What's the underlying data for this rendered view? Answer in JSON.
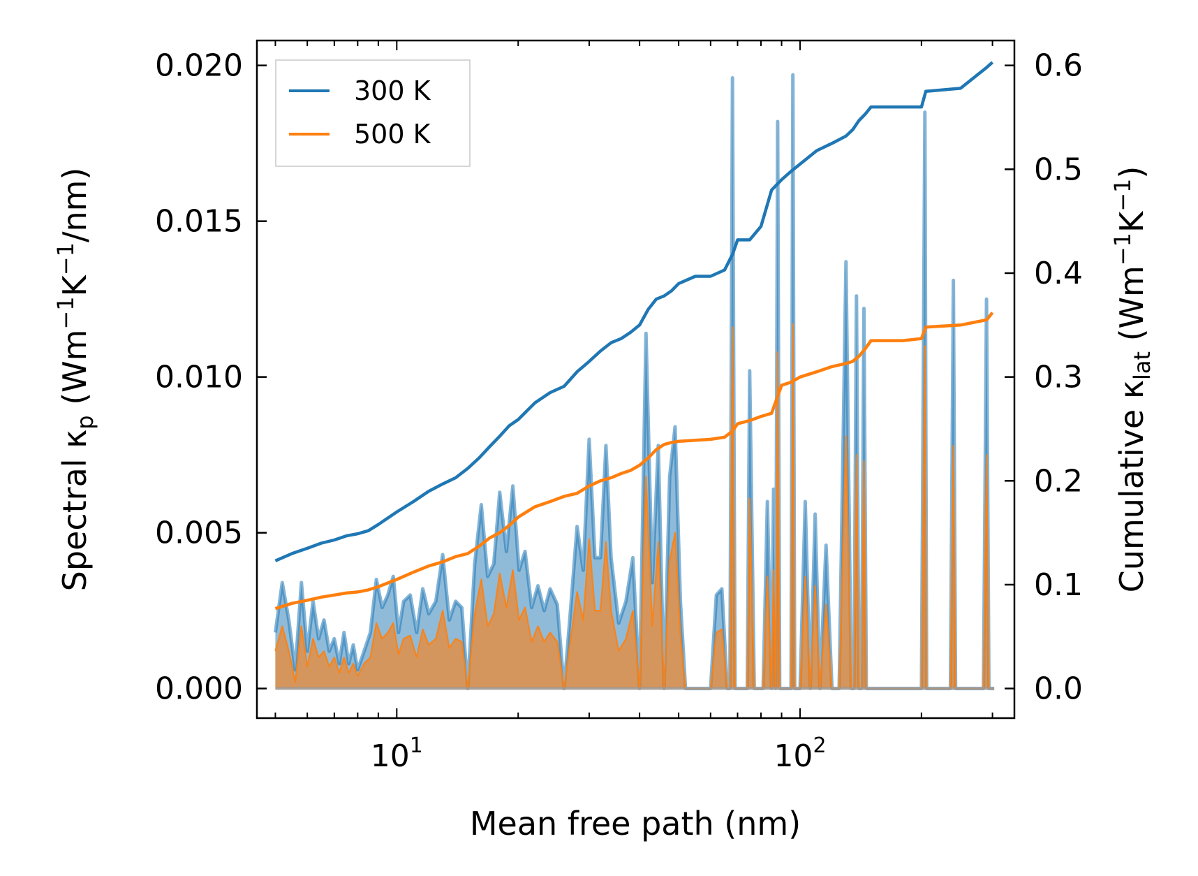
{
  "chart_data": {
    "type": "line",
    "title": "",
    "xlabel": "Mean free path (nm)",
    "ylabel_left": "Spectral κp (Wm⁻¹K⁻¹/nm)",
    "ylabel_right": "Cumulative κlat (Wm⁻¹K⁻¹)",
    "xscale": "log",
    "xlim": [
      4.5,
      340
    ],
    "ylim_left": [
      -0.00095,
      0.0208
    ],
    "ylim_right": [
      -0.0285,
      0.624
    ],
    "x_ticks": [
      {
        "value": 10,
        "base": "10",
        "exp": "1"
      },
      {
        "value": 100,
        "base": "10",
        "exp": "2"
      }
    ],
    "y_ticks_left": [
      "0.000",
      "0.005",
      "0.010",
      "0.015",
      "0.020"
    ],
    "y_tick_values_left": [
      0,
      0.005,
      0.01,
      0.015,
      0.02
    ],
    "y_ticks_right": [
      "0.0",
      "0.1",
      "0.2",
      "0.3",
      "0.4",
      "0.5",
      "0.6"
    ],
    "y_tick_values_right": [
      0,
      0.1,
      0.2,
      0.3,
      0.4,
      0.5,
      0.6
    ],
    "legend": {
      "position": "upper-left",
      "entries": [
        "300 K",
        "500 K"
      ]
    },
    "colors": {
      "s300": "#1f77b4",
      "s500": "#ff7f0e",
      "fill300": "#1f77b4",
      "fill500": "#ff7f0e"
    },
    "series": [
      {
        "name": "300 K",
        "axis": "right",
        "kind": "cumulative",
        "x": [
          5,
          5.5,
          6,
          6.5,
          7,
          7.5,
          8,
          8.5,
          9,
          10,
          11,
          12,
          13,
          14,
          15,
          16,
          17,
          18,
          19,
          20,
          22,
          24,
          26,
          28,
          30,
          32,
          34,
          36,
          38,
          40,
          42,
          44,
          46,
          48,
          50,
          55,
          60,
          65,
          68,
          70,
          75,
          80,
          85,
          90,
          95,
          100,
          110,
          120,
          130,
          135,
          140,
          145,
          150,
          160,
          180,
          200,
          205,
          250,
          290,
          300
        ],
        "y": [
          0.123,
          0.13,
          0.135,
          0.14,
          0.143,
          0.147,
          0.149,
          0.152,
          0.158,
          0.17,
          0.18,
          0.19,
          0.197,
          0.203,
          0.212,
          0.222,
          0.233,
          0.243,
          0.253,
          0.259,
          0.275,
          0.285,
          0.291,
          0.305,
          0.315,
          0.325,
          0.333,
          0.337,
          0.343,
          0.35,
          0.365,
          0.375,
          0.378,
          0.383,
          0.39,
          0.397,
          0.397,
          0.403,
          0.418,
          0.432,
          0.432,
          0.445,
          0.48,
          0.49,
          0.498,
          0.505,
          0.518,
          0.525,
          0.532,
          0.538,
          0.547,
          0.553,
          0.56,
          0.56,
          0.56,
          0.56,
          0.575,
          0.578,
          0.598,
          0.603
        ]
      },
      {
        "name": "500 K",
        "axis": "right",
        "kind": "cumulative",
        "x": [
          5,
          5.5,
          6,
          6.5,
          7,
          7.5,
          8,
          8.5,
          9,
          10,
          11,
          12,
          13,
          14,
          15,
          16,
          17,
          18,
          19,
          20,
          22,
          24,
          26,
          28,
          30,
          32,
          34,
          36,
          38,
          40,
          42,
          44,
          46,
          48,
          50,
          55,
          60,
          65,
          68,
          70,
          75,
          80,
          85,
          90,
          95,
          100,
          110,
          120,
          130,
          135,
          140,
          145,
          150,
          160,
          180,
          200,
          205,
          250,
          290,
          300
        ],
        "y": [
          0.077,
          0.082,
          0.085,
          0.088,
          0.09,
          0.092,
          0.093,
          0.095,
          0.098,
          0.105,
          0.112,
          0.118,
          0.122,
          0.127,
          0.13,
          0.137,
          0.145,
          0.15,
          0.157,
          0.165,
          0.175,
          0.18,
          0.185,
          0.188,
          0.195,
          0.2,
          0.203,
          0.207,
          0.21,
          0.215,
          0.222,
          0.23,
          0.235,
          0.237,
          0.238,
          0.239,
          0.24,
          0.242,
          0.248,
          0.255,
          0.258,
          0.262,
          0.265,
          0.292,
          0.295,
          0.3,
          0.305,
          0.31,
          0.313,
          0.315,
          0.32,
          0.327,
          0.335,
          0.335,
          0.335,
          0.337,
          0.348,
          0.35,
          0.355,
          0.362
        ]
      },
      {
        "name": "300 K",
        "axis": "left",
        "kind": "spectral",
        "x": [
          5.0,
          5.2,
          5.4,
          5.6,
          5.8,
          6.0,
          6.2,
          6.4,
          6.6,
          6.8,
          7.0,
          7.2,
          7.4,
          7.6,
          7.8,
          8.0,
          8.3,
          8.6,
          8.9,
          9.2,
          9.5,
          9.8,
          10.1,
          10.4,
          10.8,
          11.2,
          11.6,
          12.0,
          12.5,
          13.0,
          13.5,
          14.0,
          14.5,
          15.0,
          15.6,
          16.2,
          16.8,
          17.4,
          18.0,
          18.7,
          19.4,
          20.1,
          20.8,
          21.6,
          22.4,
          23.2,
          24.0,
          25.0,
          26.0,
          27.0,
          28.0,
          29.0,
          30.0,
          31.0,
          32.0,
          33.0,
          34.0,
          35.5,
          37.0,
          38.5,
          40.0,
          41.5,
          43.0,
          44.5,
          46.0,
          47.5,
          49.0,
          50.5,
          52.0,
          54.0,
          56.0,
          58.0,
          60.0,
          62.0,
          64.0,
          66.0,
          67.0,
          68.0,
          69.0,
          70.0,
          71.0,
          72.0,
          73.0,
          74.0,
          75.0,
          77.0,
          79.0,
          81.0,
          83.0,
          85.0,
          86.0,
          87.0,
          88.0,
          89.0,
          90.0,
          92.0,
          94.0,
          95.0,
          96.0,
          97.0,
          98.0,
          100.0,
          103.0,
          106.0,
          109.0,
          112.0,
          116.0,
          120.0,
          125.0,
          130.0,
          134.0,
          136.0,
          138.0,
          140.0,
          142.0,
          144.0,
          146.0,
          148.0,
          150.0,
          152.0,
          156.0,
          200.0,
          204.0,
          206.0,
          208.0,
          212.0,
          236.0,
          240.0,
          243.0,
          246.0,
          250.0,
          280.0,
          285.0,
          290.0,
          294.0,
          298.0,
          303.0
        ],
        "y": [
          0.0018,
          0.0034,
          0.0022,
          0.0006,
          0.0034,
          0.0012,
          0.0028,
          0.0016,
          0.0022,
          0.0012,
          0.0016,
          0.0008,
          0.0018,
          0.0008,
          0.0014,
          0.0006,
          0.0012,
          0.0018,
          0.0035,
          0.0026,
          0.003,
          0.0036,
          0.0018,
          0.0028,
          0.003,
          0.0018,
          0.0032,
          0.0024,
          0.0028,
          0.0043,
          0.0022,
          0.0028,
          0.0026,
          0.0,
          0.004,
          0.0059,
          0.0036,
          0.004,
          0.0063,
          0.0044,
          0.0065,
          0.0038,
          0.0044,
          0.0026,
          0.0033,
          0.0025,
          0.0032,
          0.0027,
          0.0,
          0.0026,
          0.0052,
          0.0038,
          0.008,
          0.0042,
          0.0042,
          0.0078,
          0.0042,
          0.0021,
          0.0028,
          0.0042,
          0.0,
          0.0114,
          0.0034,
          0.0078,
          0.0,
          0.0068,
          0.0084,
          0.0028,
          0.0,
          0.0,
          0.0,
          0.0,
          0.0,
          0.003,
          0.0032,
          0.0,
          0.0,
          0.0196,
          0.0,
          0.0,
          0.0,
          0.0,
          0.0,
          0.0,
          0.0102,
          0.0,
          0.0,
          0.0,
          0.006,
          0.0,
          0.0064,
          0.0,
          0.0182,
          0.0,
          0.0,
          0.0,
          0.0,
          0.0,
          0.0197,
          0.0,
          0.0,
          0.0,
          0.006,
          0.0,
          0.0056,
          0.0,
          0.0046,
          0.0,
          0.0,
          0.0137,
          0.0,
          0.0,
          0.0126,
          0.0,
          0.0,
          0.0122,
          0.0,
          0.0,
          0.0,
          0.0,
          0.0,
          0.0,
          0.0185,
          0.0,
          0.0,
          0.0,
          0.0,
          0.0131,
          0.0,
          0.0,
          0.0,
          0.0,
          0.0,
          0.0125,
          0.0,
          0.0,
          0.0
        ]
      },
      {
        "name": "500 K",
        "axis": "left",
        "kind": "spectral",
        "x": [
          5.0,
          5.2,
          5.4,
          5.6,
          5.8,
          6.0,
          6.2,
          6.4,
          6.6,
          6.8,
          7.0,
          7.2,
          7.4,
          7.6,
          7.8,
          8.0,
          8.3,
          8.6,
          8.9,
          9.2,
          9.5,
          9.8,
          10.1,
          10.4,
          10.8,
          11.2,
          11.6,
          12.0,
          12.5,
          13.0,
          13.5,
          14.0,
          14.5,
          15.0,
          15.6,
          16.2,
          16.8,
          17.4,
          18.0,
          18.7,
          19.4,
          20.1,
          20.8,
          21.6,
          22.4,
          23.2,
          24.0,
          25.0,
          26.0,
          27.0,
          28.0,
          29.0,
          30.0,
          31.0,
          32.0,
          33.0,
          34.0,
          35.5,
          37.0,
          38.5,
          40.0,
          41.5,
          43.0,
          44.5,
          46.0,
          47.5,
          49.0,
          50.5,
          52.0,
          54.0,
          56.0,
          58.0,
          60.0,
          62.0,
          64.0,
          66.0,
          67.0,
          68.0,
          69.0,
          70.0,
          71.0,
          72.0,
          73.0,
          74.0,
          75.0,
          77.0,
          79.0,
          81.0,
          83.0,
          85.0,
          86.0,
          87.0,
          88.0,
          89.0,
          90.0,
          92.0,
          94.0,
          95.0,
          96.0,
          97.0,
          98.0,
          100.0,
          103.0,
          106.0,
          109.0,
          112.0,
          116.0,
          120.0,
          125.0,
          130.0,
          134.0,
          136.0,
          138.0,
          140.0,
          142.0,
          144.0,
          146.0,
          148.0,
          150.0,
          152.0,
          156.0,
          200.0,
          204.0,
          206.0,
          208.0,
          212.0,
          236.0,
          240.0,
          243.0,
          246.0,
          250.0,
          280.0,
          285.0,
          290.0,
          294.0,
          298.0,
          303.0
        ],
        "y": [
          0.0012,
          0.002,
          0.0012,
          0.0002,
          0.002,
          0.0007,
          0.0016,
          0.001,
          0.0012,
          0.0007,
          0.001,
          0.0005,
          0.001,
          0.0005,
          0.0008,
          0.0004,
          0.0008,
          0.001,
          0.0021,
          0.0016,
          0.0018,
          0.0021,
          0.0011,
          0.0016,
          0.0017,
          0.001,
          0.0019,
          0.0014,
          0.0016,
          0.0025,
          0.0013,
          0.0016,
          0.0015,
          0.0,
          0.0024,
          0.0035,
          0.002,
          0.0024,
          0.0037,
          0.0026,
          0.0038,
          0.0022,
          0.0026,
          0.0015,
          0.002,
          0.0015,
          0.0018,
          0.0015,
          0.0,
          0.0016,
          0.0031,
          0.0022,
          0.0048,
          0.0025,
          0.0025,
          0.0047,
          0.0025,
          0.0012,
          0.0016,
          0.0025,
          0.0,
          0.0068,
          0.002,
          0.0047,
          0.0,
          0.0041,
          0.005,
          0.0017,
          0.0,
          0.0,
          0.0,
          0.0,
          0.0,
          0.0018,
          0.0019,
          0.0,
          0.0,
          0.0116,
          0.0,
          0.0,
          0.0,
          0.0,
          0.0,
          0.0,
          0.0061,
          0.0,
          0.0,
          0.0,
          0.0036,
          0.0,
          0.0038,
          0.0,
          0.0108,
          0.0,
          0.0,
          0.0,
          0.0,
          0.0,
          0.0117,
          0.0,
          0.0,
          0.0,
          0.0036,
          0.0,
          0.0033,
          0.0,
          0.0027,
          0.0,
          0.0,
          0.0081,
          0.0,
          0.0,
          0.0075,
          0.0,
          0.0,
          0.0073,
          0.0,
          0.0,
          0.0,
          0.0,
          0.0,
          0.0,
          0.011,
          0.0,
          0.0,
          0.0,
          0.0,
          0.0078,
          0.0,
          0.0,
          0.0,
          0.0,
          0.0,
          0.0075,
          0.0,
          0.0,
          0.0
        ]
      }
    ]
  }
}
